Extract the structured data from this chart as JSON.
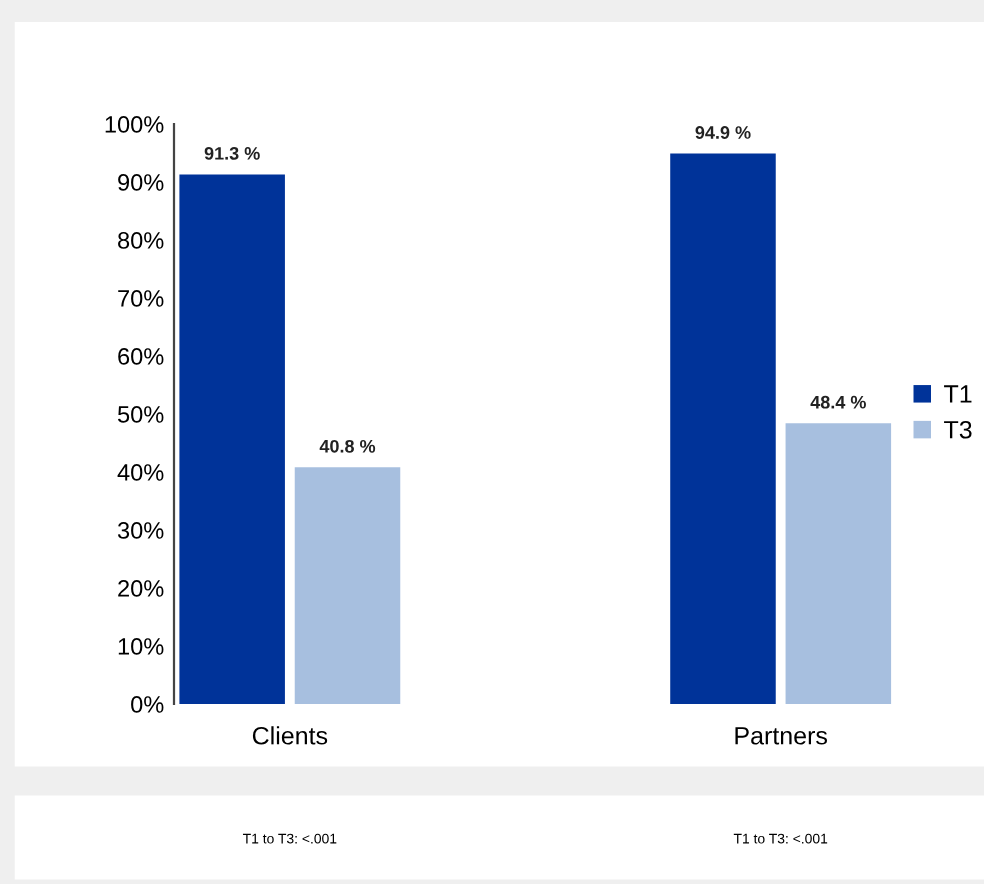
{
  "chart_data": {
    "type": "bar",
    "categories": [
      "Clients",
      "Partners"
    ],
    "series": [
      {
        "name": "T1",
        "color": "#003399",
        "values": [
          91.3,
          94.9
        ],
        "value_labels": [
          "91.3 %",
          "94.9 %"
        ]
      },
      {
        "name": "T3",
        "color": "#a7bfdf",
        "values": [
          40.8,
          48.4
        ],
        "value_labels": [
          "40.8 %",
          "48.4 %"
        ]
      }
    ],
    "ylim": [
      0,
      100
    ],
    "yticks": [
      {
        "value": 0,
        "label": "0%"
      },
      {
        "value": 10,
        "label": "10%"
      },
      {
        "value": 20,
        "label": "20%"
      },
      {
        "value": 30,
        "label": "30%"
      },
      {
        "value": 40,
        "label": "40%"
      },
      {
        "value": 50,
        "label": "50%"
      },
      {
        "value": 60,
        "label": "60%"
      },
      {
        "value": 70,
        "label": "70%"
      },
      {
        "value": 80,
        "label": "80%"
      },
      {
        "value": 90,
        "label": "90%"
      },
      {
        "value": 100,
        "label": "100%"
      }
    ],
    "grid": false,
    "legend": "right",
    "annotations": [
      "T1 to T3: <.001",
      "T1 to T3: <.001"
    ]
  }
}
